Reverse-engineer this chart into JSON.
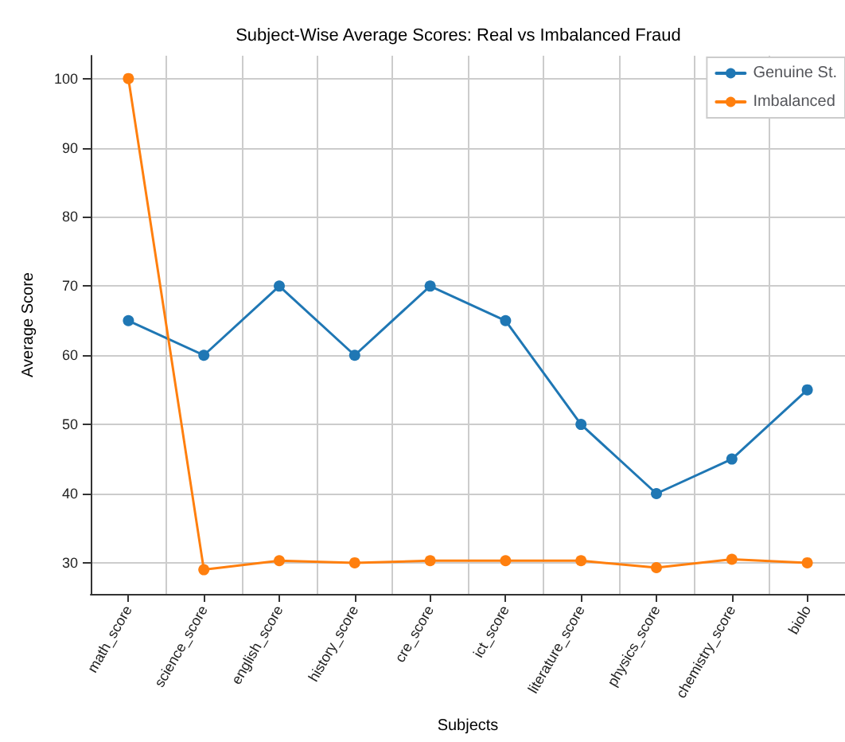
{
  "chart_data": {
    "type": "line",
    "title": "Subject-Wise Average Scores: Real vs Imbalanced Fraud",
    "xlabel": "Subjects",
    "ylabel": "Average Score",
    "categories": [
      "math_score",
      "science_score",
      "english_score",
      "history_score",
      "cre_score",
      "ict_score",
      "literature_score",
      "physics_score",
      "chemistry_score",
      "biolo"
    ],
    "series": [
      {
        "name": "Genuine St.",
        "color": "#1f77b4",
        "values": [
          65,
          60,
          70,
          60,
          70,
          65,
          50,
          40,
          45,
          55
        ]
      },
      {
        "name": "Imbalanced",
        "color": "#ff7f0e",
        "values": [
          100,
          29,
          30.3,
          30,
          30.3,
          30.3,
          30.3,
          29.3,
          30.5,
          30
        ]
      }
    ],
    "ylim": [
      25.5,
      103.3
    ],
    "yticks": [
      30,
      40,
      50,
      60,
      70,
      80,
      90,
      100
    ],
    "grid": true,
    "legend": "top right",
    "marker": "circle",
    "line_style": "solid"
  }
}
